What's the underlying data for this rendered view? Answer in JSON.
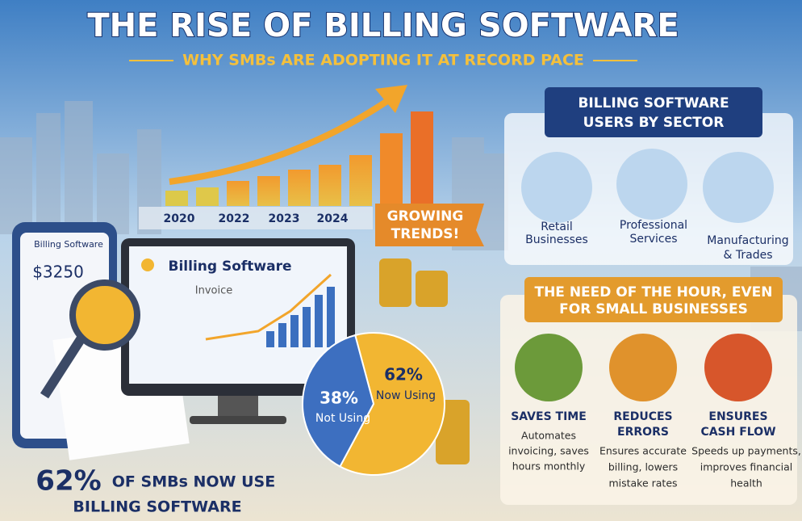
{
  "header": {
    "title": "THE RISE OF BILLING SOFTWARE",
    "subtitle": "WHY SMBs ARE ADOPTING IT AT RECORD PACE"
  },
  "growth": {
    "years": [
      "2020",
      "2022",
      "2023",
      "2024"
    ],
    "badge": [
      "GROWING",
      "TRENDS!"
    ]
  },
  "phone": {
    "app": "Billing Software",
    "amount": "$3250"
  },
  "monitor": {
    "app": "Billing Software",
    "section": "Invoice"
  },
  "chart_data": {
    "type": "pie",
    "categories": [
      "Now Using",
      "Not Using"
    ],
    "values": [
      62,
      38
    ],
    "value_labels": [
      "62%",
      "38%"
    ],
    "colors": [
      "#f2b632",
      "#3d6fc0"
    ]
  },
  "highlight": {
    "figure": "62%",
    "line1": "OF SMBs NOW USE",
    "line2": "BILLING SOFTWARE"
  },
  "sectors": {
    "title": [
      "BILLING SOFTWARE",
      "USERS BY SECTOR"
    ],
    "items": [
      {
        "label": [
          "Retail",
          "Businesses"
        ]
      },
      {
        "label": [
          "Professional",
          "Services"
        ]
      },
      {
        "label": [
          "Manufacturing",
          "& Trades"
        ]
      }
    ]
  },
  "needs": {
    "title": [
      "THE NEED OF THE HOUR, EVEN",
      "FOR SMALL BUSINESSES"
    ],
    "items": [
      {
        "title": [
          "SAVES TIME"
        ],
        "text": [
          "Automates",
          "invoicing, saves",
          "hours monthly"
        ]
      },
      {
        "title": [
          "REDUCES",
          "ERRORS"
        ],
        "text": [
          "Ensures accurate",
          "billing, lowers",
          "mistake rates"
        ]
      },
      {
        "title": [
          "ENSURES",
          "CASH FLOW"
        ],
        "text": [
          "Speeds up payments,",
          "improves financial",
          "health"
        ]
      }
    ]
  }
}
